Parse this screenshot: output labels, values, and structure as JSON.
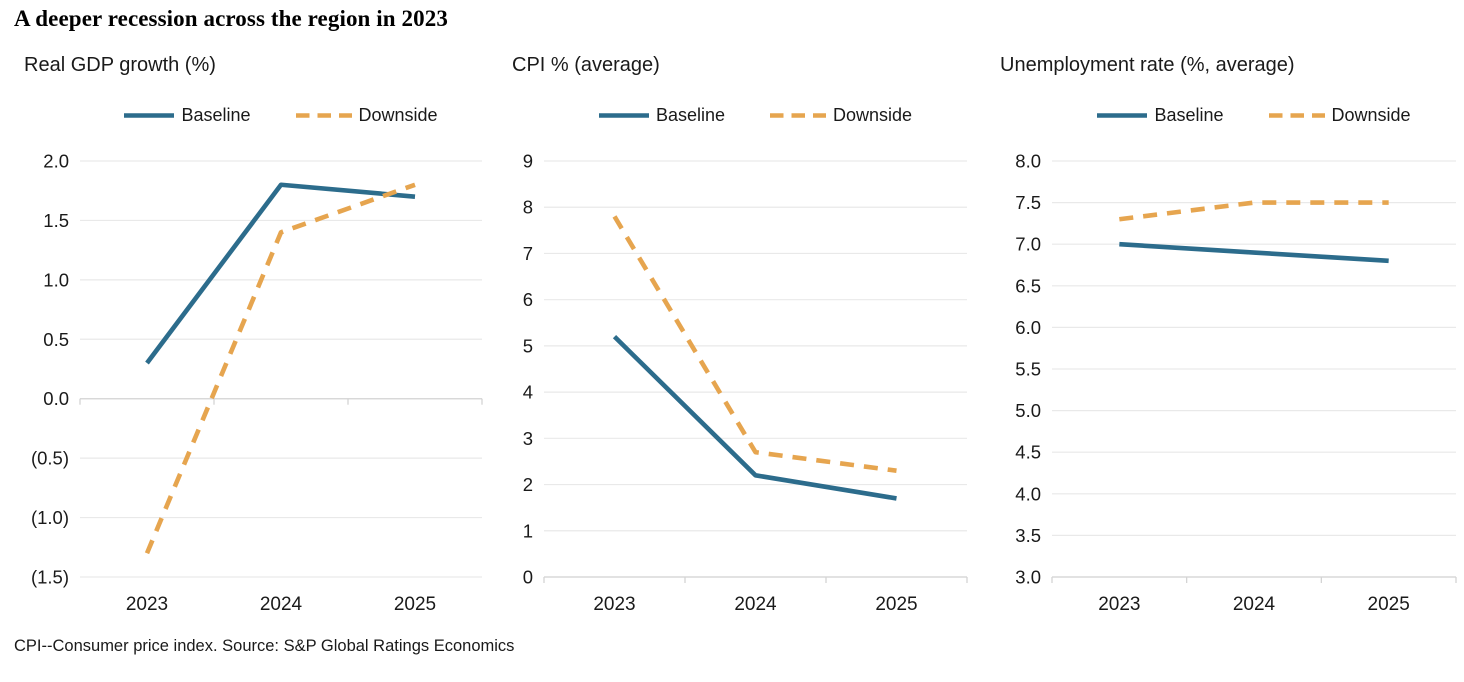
{
  "page": {
    "title": "A deeper recession across the region in 2023",
    "footnote": "CPI--Consumer price index. Source: S&P Global Ratings Economics"
  },
  "colors": {
    "baseline": "#2C6C8C",
    "downside": "#E6A54F",
    "gridline": "#E9E9E9",
    "axis": "#D4D4D4",
    "text": "#1A1A1A"
  },
  "chart_data": [
    {
      "type": "line",
      "title": "Real GDP growth (%)",
      "categories": [
        "2023",
        "2024",
        "2025"
      ],
      "series": [
        {
          "name": "Baseline",
          "style": "solid",
          "values": [
            0.3,
            1.8,
            1.7
          ]
        },
        {
          "name": "Downside",
          "style": "dashed",
          "values": [
            -1.3,
            1.4,
            1.8
          ]
        }
      ],
      "ylim": [
        -1.5,
        2.0
      ],
      "grid": true,
      "legend_position": "top",
      "y_ticks": [
        {
          "value": 2.0,
          "label": "2.0"
        },
        {
          "value": 1.5,
          "label": "1.5"
        },
        {
          "value": 1.0,
          "label": "1.0"
        },
        {
          "value": 0.5,
          "label": "0.5"
        },
        {
          "value": 0.0,
          "label": "0.0"
        },
        {
          "value": -0.5,
          "label": "(0.5)"
        },
        {
          "value": -1.0,
          "label": "(1.0)"
        },
        {
          "value": -1.5,
          "label": "(1.5)"
        }
      ]
    },
    {
      "type": "line",
      "title": "CPI % (average)",
      "categories": [
        "2023",
        "2024",
        "2025"
      ],
      "series": [
        {
          "name": "Baseline",
          "style": "solid",
          "values": [
            5.2,
            2.2,
            1.7
          ]
        },
        {
          "name": "Downside",
          "style": "dashed",
          "values": [
            7.8,
            2.7,
            2.3
          ]
        }
      ],
      "ylim": [
        0,
        9
      ],
      "grid": true,
      "legend_position": "top",
      "y_ticks": [
        {
          "value": 9,
          "label": "9"
        },
        {
          "value": 8,
          "label": "8"
        },
        {
          "value": 7,
          "label": "7"
        },
        {
          "value": 6,
          "label": "6"
        },
        {
          "value": 5,
          "label": "5"
        },
        {
          "value": 4,
          "label": "4"
        },
        {
          "value": 3,
          "label": "3"
        },
        {
          "value": 2,
          "label": "2"
        },
        {
          "value": 1,
          "label": "1"
        },
        {
          "value": 0,
          "label": "0"
        }
      ]
    },
    {
      "type": "line",
      "title": "Unemployment rate (%, average)",
      "categories": [
        "2023",
        "2024",
        "2025"
      ],
      "series": [
        {
          "name": "Baseline",
          "style": "solid",
          "values": [
            7.0,
            6.9,
            6.8
          ]
        },
        {
          "name": "Downside",
          "style": "dashed",
          "values": [
            7.3,
            7.5,
            7.5
          ]
        }
      ],
      "ylim": [
        3.0,
        8.0
      ],
      "grid": true,
      "legend_position": "top",
      "y_ticks": [
        {
          "value": 8.0,
          "label": "8.0"
        },
        {
          "value": 7.5,
          "label": "7.5"
        },
        {
          "value": 7.0,
          "label": "7.0"
        },
        {
          "value": 6.5,
          "label": "6.5"
        },
        {
          "value": 6.0,
          "label": "6.0"
        },
        {
          "value": 5.5,
          "label": "5.5"
        },
        {
          "value": 5.0,
          "label": "5.0"
        },
        {
          "value": 4.5,
          "label": "4.5"
        },
        {
          "value": 4.0,
          "label": "4.0"
        },
        {
          "value": 3.5,
          "label": "3.5"
        },
        {
          "value": 3.0,
          "label": "3.0"
        }
      ]
    }
  ]
}
